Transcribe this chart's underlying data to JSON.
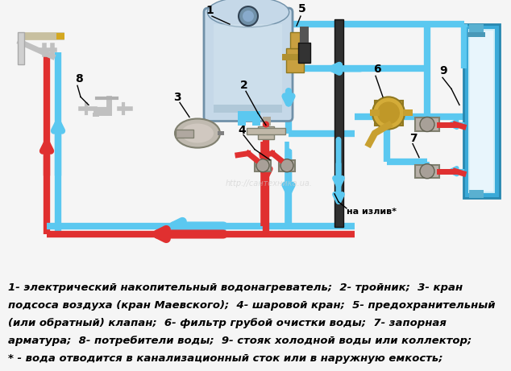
{
  "bg_color": "#f5f5f5",
  "cold_color": "#5bc8f0",
  "hot_color": "#e03030",
  "pipe_lw": 6,
  "arrow_lw": 18,
  "boiler_color": "#c5d8e8",
  "boiler_edge": "#7090a8",
  "brass_color": "#c8a020",
  "silver_color": "#b0b0b0",
  "dark_pipe_color": "#303030",
  "legend_lines": [
    "1- электрический накопительный водонагреватель;  2- тройник;  3- кран",
    "подсоса воздуха (кран Маевского);  4- шаровой кран;  5- предохранительный",
    "(или обратный) клапан;  6- фильтр грубой очистки воды;  7- запорная",
    "арматура;  8- потребители воды;  9- стояк холодной воды или коллектор;",
    "* - вода отводится в канализационный сток или в наружную емкость;"
  ],
  "watermark": "http://сантехника.ua.",
  "font_family": "DejaVu Sans"
}
